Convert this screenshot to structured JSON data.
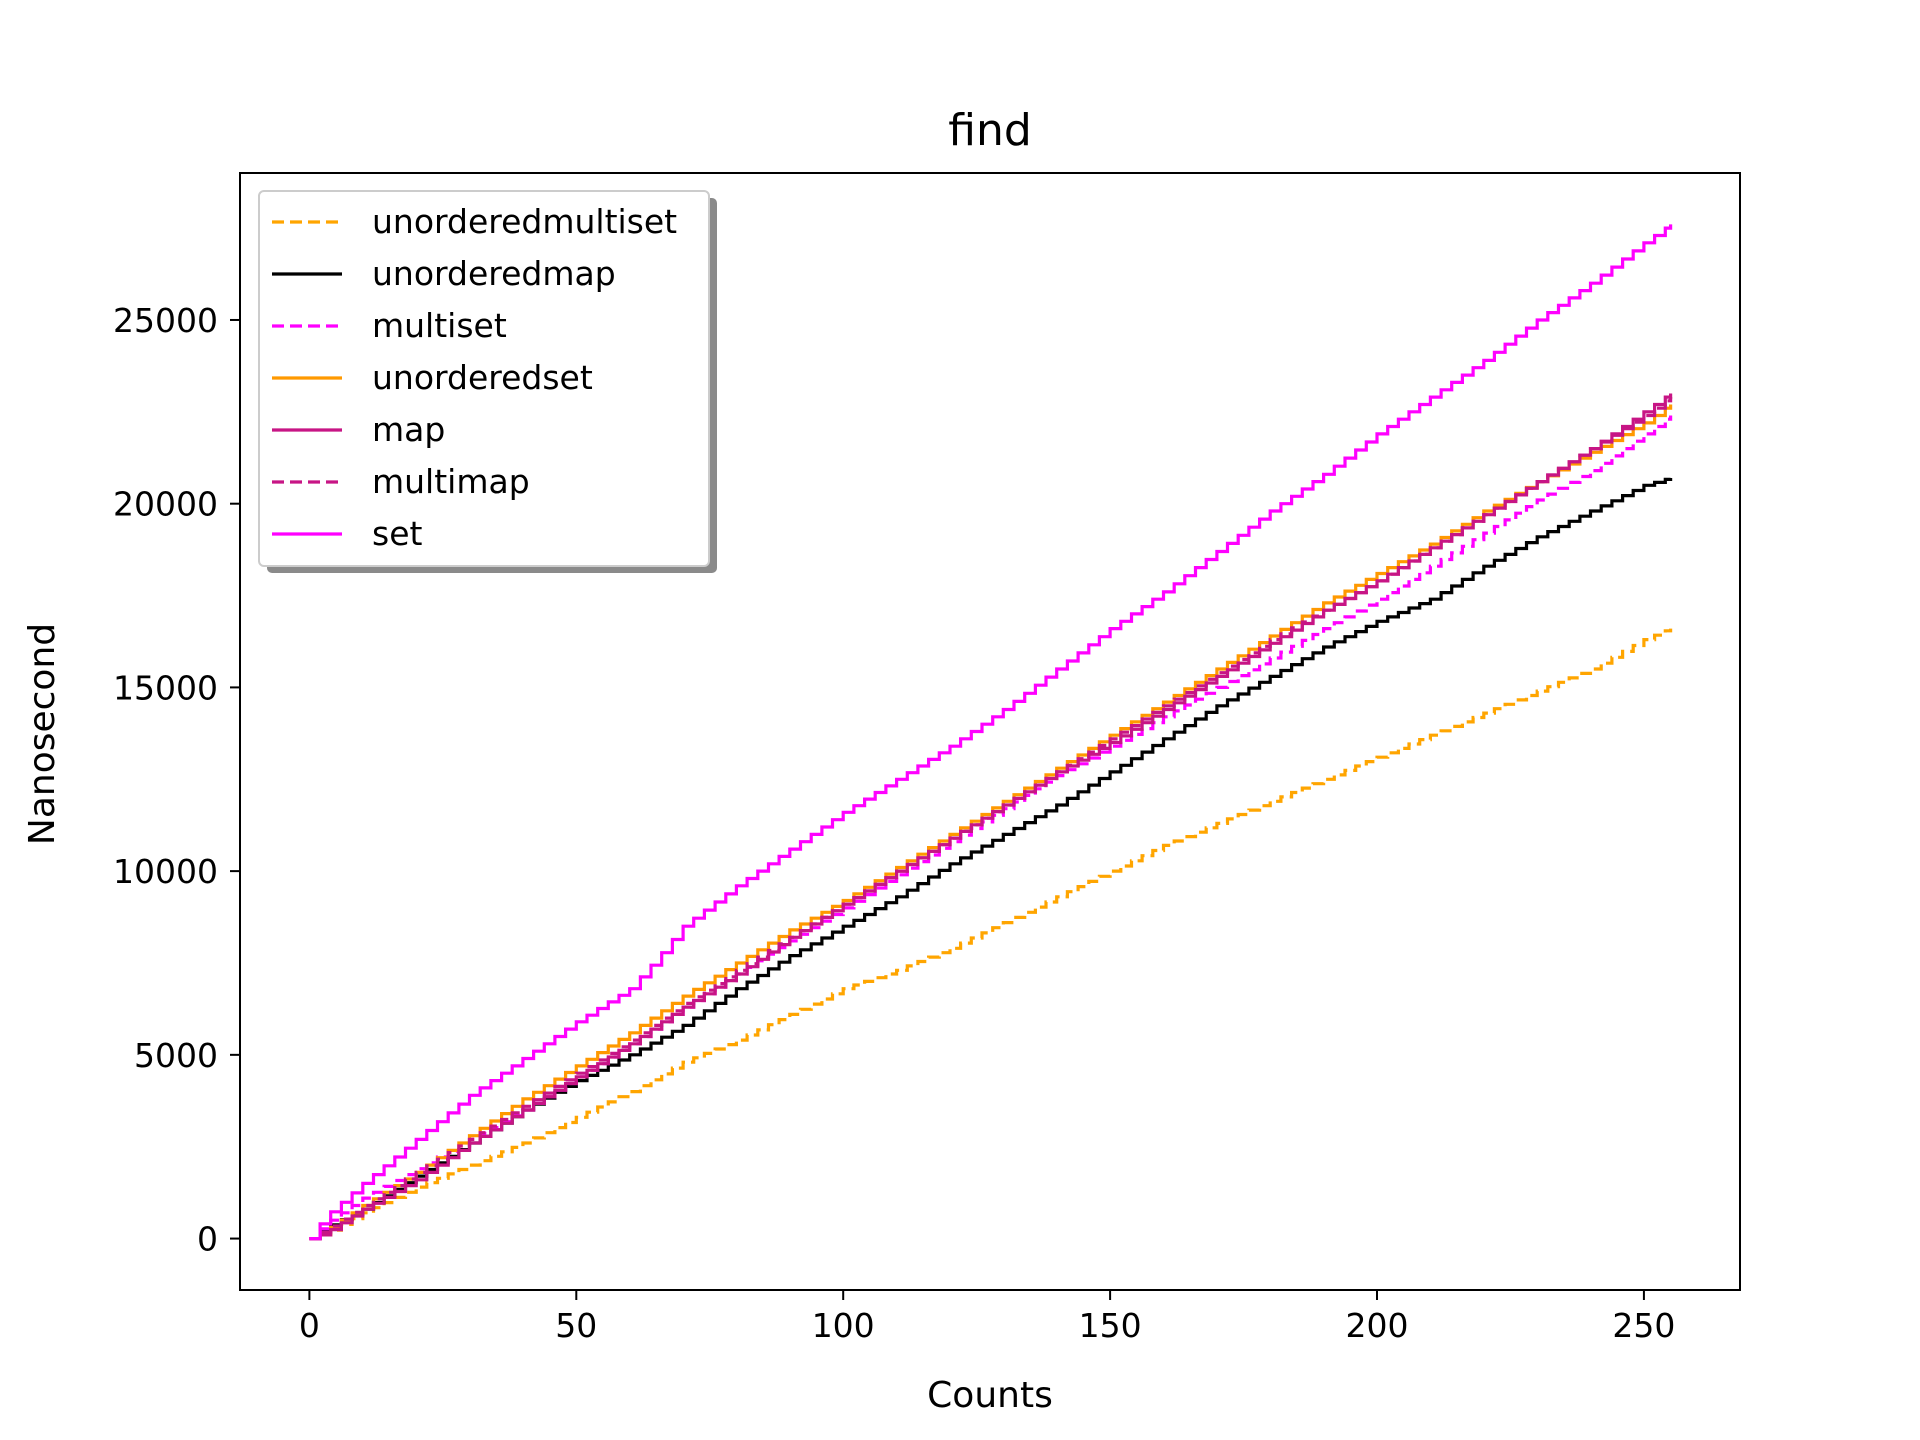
{
  "chart_data": {
    "type": "line",
    "title": "find",
    "xlabel": "Counts",
    "ylabel": "Nanosecond",
    "xlim": [
      -13,
      268
    ],
    "ylim": [
      -1400,
      29000
    ],
    "xticks": [
      0,
      50,
      100,
      150,
      200,
      250
    ],
    "yticks": [
      0,
      5000,
      10000,
      15000,
      20000,
      25000
    ],
    "legend_position": "top-left",
    "grid": false,
    "step_points": [
      0,
      2,
      4,
      6,
      8,
      10,
      12,
      14,
      16,
      18,
      20,
      22,
      24,
      26,
      28,
      30,
      32,
      34,
      36,
      38,
      40,
      42,
      44,
      46,
      48,
      50,
      52,
      54,
      56,
      58,
      60,
      62,
      64,
      66,
      68,
      70,
      72,
      74,
      76,
      78,
      80,
      82,
      84,
      86,
      88,
      90,
      92,
      94,
      96,
      98,
      100,
      102,
      104,
      106,
      108,
      110,
      112,
      114,
      116,
      118,
      120,
      122,
      124,
      126,
      128,
      130,
      132,
      134,
      136,
      138,
      140,
      142,
      144,
      146,
      148,
      150,
      152,
      154,
      156,
      158,
      160,
      162,
      164,
      166,
      168,
      170,
      172,
      174,
      176,
      178,
      180,
      182,
      184,
      186,
      188,
      190,
      192,
      194,
      196,
      198,
      200,
      202,
      204,
      206,
      208,
      210,
      212,
      214,
      216,
      218,
      220,
      222,
      224,
      226,
      228,
      230,
      232,
      234,
      236,
      238,
      240,
      242,
      244,
      246,
      248,
      250,
      252,
      254,
      255
    ],
    "series": [
      {
        "name": "unorderedmultiset",
        "color": "#FFA500",
        "dash": "dashed",
        "points": [
          [
            0,
            0
          ],
          [
            3,
            150
          ],
          [
            10,
            700
          ],
          [
            20,
            1400
          ],
          [
            30,
            2000
          ],
          [
            40,
            2600
          ],
          [
            50,
            3300
          ],
          [
            60,
            4000
          ],
          [
            70,
            4800
          ],
          [
            80,
            5400
          ],
          [
            90,
            6100
          ],
          [
            100,
            6800
          ],
          [
            110,
            7300
          ],
          [
            120,
            7900
          ],
          [
            130,
            8600
          ],
          [
            140,
            9300
          ],
          [
            150,
            10000
          ],
          [
            160,
            10700
          ],
          [
            170,
            11300
          ],
          [
            180,
            11900
          ],
          [
            190,
            12500
          ],
          [
            200,
            13100
          ],
          [
            210,
            13700
          ],
          [
            220,
            14300
          ],
          [
            230,
            14900
          ],
          [
            240,
            15500
          ],
          [
            250,
            16300
          ],
          [
            255,
            16600
          ]
        ]
      },
      {
        "name": "unorderedmap",
        "color": "#000000",
        "dash": "solid",
        "points": [
          [
            0,
            0
          ],
          [
            3,
            300
          ],
          [
            10,
            800
          ],
          [
            20,
            1700
          ],
          [
            30,
            2600
          ],
          [
            40,
            3500
          ],
          [
            50,
            4300
          ],
          [
            60,
            5000
          ],
          [
            70,
            5800
          ],
          [
            80,
            6800
          ],
          [
            90,
            7700
          ],
          [
            100,
            8500
          ],
          [
            110,
            9300
          ],
          [
            120,
            10200
          ],
          [
            130,
            11000
          ],
          [
            140,
            11800
          ],
          [
            150,
            12700
          ],
          [
            160,
            13600
          ],
          [
            170,
            14500
          ],
          [
            180,
            15300
          ],
          [
            190,
            16100
          ],
          [
            200,
            16800
          ],
          [
            210,
            17400
          ],
          [
            220,
            18300
          ],
          [
            230,
            19100
          ],
          [
            240,
            19800
          ],
          [
            250,
            20500
          ],
          [
            255,
            20700
          ]
        ]
      },
      {
        "name": "multiset",
        "color": "#FF00FF",
        "dash": "dashed",
        "points": [
          [
            0,
            0
          ],
          [
            3,
            400
          ],
          [
            10,
            1100
          ],
          [
            20,
            1900
          ],
          [
            30,
            2700
          ],
          [
            40,
            3500
          ],
          [
            50,
            4400
          ],
          [
            60,
            5300
          ],
          [
            70,
            6300
          ],
          [
            80,
            7200
          ],
          [
            90,
            8100
          ],
          [
            100,
            9000
          ],
          [
            110,
            9900
          ],
          [
            120,
            10800
          ],
          [
            130,
            11700
          ],
          [
            140,
            12600
          ],
          [
            150,
            13400
          ],
          [
            160,
            14200
          ],
          [
            170,
            15000
          ],
          [
            180,
            15800
          ],
          [
            190,
            16600
          ],
          [
            200,
            17400
          ],
          [
            210,
            18300
          ],
          [
            220,
            19200
          ],
          [
            230,
            20100
          ],
          [
            240,
            20900
          ],
          [
            250,
            21900
          ],
          [
            255,
            22400
          ]
        ]
      },
      {
        "name": "unorderedset",
        "color": "#FF9900",
        "dash": "solid",
        "points": [
          [
            0,
            0
          ],
          [
            3,
            200
          ],
          [
            10,
            900
          ],
          [
            20,
            1800
          ],
          [
            30,
            2800
          ],
          [
            40,
            3800
          ],
          [
            50,
            4700
          ],
          [
            60,
            5600
          ],
          [
            70,
            6600
          ],
          [
            80,
            7500
          ],
          [
            90,
            8400
          ],
          [
            100,
            9200
          ],
          [
            110,
            10100
          ],
          [
            120,
            11000
          ],
          [
            130,
            11900
          ],
          [
            140,
            12800
          ],
          [
            150,
            13700
          ],
          [
            160,
            14600
          ],
          [
            170,
            15500
          ],
          [
            180,
            16400
          ],
          [
            190,
            17300
          ],
          [
            200,
            18100
          ],
          [
            210,
            18900
          ],
          [
            220,
            19800
          ],
          [
            230,
            20600
          ],
          [
            240,
            21400
          ],
          [
            250,
            22200
          ],
          [
            255,
            22700
          ]
        ]
      },
      {
        "name": "map",
        "color": "#C71585",
        "dash": "solid",
        "points": [
          [
            0,
            0
          ],
          [
            3,
            150
          ],
          [
            10,
            800
          ],
          [
            20,
            1600
          ],
          [
            30,
            2600
          ],
          [
            40,
            3500
          ],
          [
            50,
            4400
          ],
          [
            60,
            5300
          ],
          [
            70,
            6300
          ],
          [
            80,
            7200
          ],
          [
            90,
            8200
          ],
          [
            100,
            9100
          ],
          [
            110,
            10000
          ],
          [
            120,
            10900
          ],
          [
            130,
            11800
          ],
          [
            140,
            12700
          ],
          [
            150,
            13500
          ],
          [
            160,
            14400
          ],
          [
            170,
            15300
          ],
          [
            180,
            16200
          ],
          [
            190,
            17100
          ],
          [
            200,
            17900
          ],
          [
            210,
            18800
          ],
          [
            220,
            19700
          ],
          [
            230,
            20600
          ],
          [
            240,
            21500
          ],
          [
            250,
            22500
          ],
          [
            255,
            23000
          ]
        ]
      },
      {
        "name": "multimap",
        "color": "#C71585",
        "dash": "dashed",
        "points": [
          [
            0,
            0
          ],
          [
            3,
            250
          ],
          [
            10,
            900
          ],
          [
            20,
            1800
          ],
          [
            30,
            2700
          ],
          [
            40,
            3600
          ],
          [
            50,
            4500
          ],
          [
            60,
            5400
          ],
          [
            70,
            6400
          ],
          [
            80,
            7300
          ],
          [
            90,
            8200
          ],
          [
            100,
            9100
          ],
          [
            110,
            10000
          ],
          [
            120,
            10900
          ],
          [
            130,
            11800
          ],
          [
            140,
            12700
          ],
          [
            150,
            13600
          ],
          [
            160,
            14500
          ],
          [
            170,
            15400
          ],
          [
            180,
            16300
          ],
          [
            190,
            17100
          ],
          [
            200,
            17900
          ],
          [
            210,
            18800
          ],
          [
            220,
            19700
          ],
          [
            230,
            20600
          ],
          [
            240,
            21500
          ],
          [
            250,
            22400
          ],
          [
            255,
            22900
          ]
        ]
      },
      {
        "name": "set",
        "color": "#FF00FF",
        "dash": "solid",
        "points": [
          [
            0,
            0
          ],
          [
            3,
            600
          ],
          [
            10,
            1500
          ],
          [
            20,
            2700
          ],
          [
            30,
            3900
          ],
          [
            40,
            4900
          ],
          [
            50,
            5900
          ],
          [
            60,
            6800
          ],
          [
            65,
            7600
          ],
          [
            70,
            8500
          ],
          [
            80,
            9600
          ],
          [
            90,
            10600
          ],
          [
            100,
            11600
          ],
          [
            110,
            12500
          ],
          [
            120,
            13400
          ],
          [
            130,
            14400
          ],
          [
            140,
            15500
          ],
          [
            150,
            16600
          ],
          [
            160,
            17600
          ],
          [
            170,
            18700
          ],
          [
            180,
            19800
          ],
          [
            190,
            20800
          ],
          [
            200,
            21900
          ],
          [
            210,
            22900
          ],
          [
            220,
            23900
          ],
          [
            230,
            25000
          ],
          [
            240,
            26000
          ],
          [
            250,
            27100
          ],
          [
            255,
            27600
          ]
        ]
      }
    ]
  }
}
